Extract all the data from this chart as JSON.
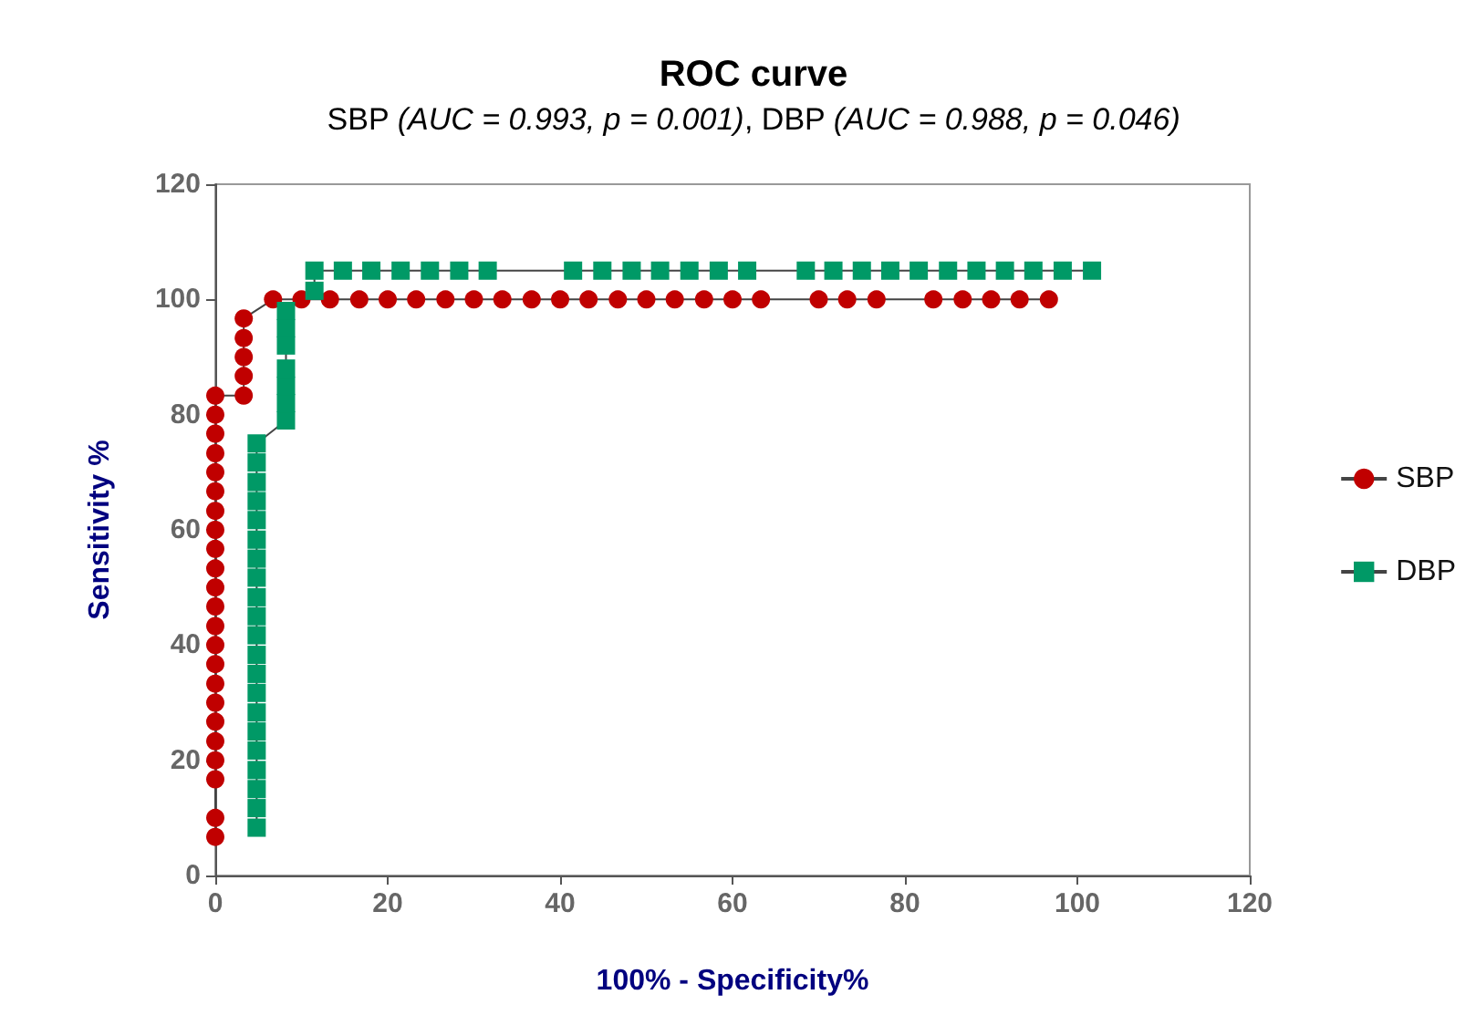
{
  "chart_data": {
    "type": "line",
    "title": "ROC curve",
    "subtitle": "SBP (AUC = 0.993, p = 0.001), DBP (AUC = 0.988, p = 0.046)",
    "xlabel": "100% - Specificity%",
    "ylabel": "Sensitivity %",
    "xlim": [
      0,
      120
    ],
    "ylim": [
      0,
      120
    ],
    "xticks": [
      0,
      20,
      40,
      60,
      80,
      100,
      120
    ],
    "yticks": [
      0,
      20,
      40,
      60,
      80,
      100,
      120
    ],
    "grid": false,
    "legend": "right",
    "line_style": "solid",
    "series": [
      {
        "name": "SBP",
        "color": "#c00000",
        "marker": "circle",
        "x": [
          0,
          0,
          0,
          0,
          0,
          0,
          0,
          0,
          0,
          0,
          0,
          0,
          0,
          0,
          0,
          0,
          0,
          0,
          0,
          0,
          0,
          0,
          0,
          3.3,
          3.3,
          3.3,
          3.3,
          3.3,
          6.7,
          10,
          13.3,
          16.7,
          20,
          23.3,
          26.7,
          30,
          33.3,
          36.7,
          40,
          43.3,
          46.7,
          50,
          53.3,
          56.7,
          60,
          63.3,
          70,
          73.3,
          76.7,
          83.3,
          86.7,
          90,
          93.3,
          96.7
        ],
        "values": [
          6.7,
          10,
          16.7,
          20,
          23.3,
          26.7,
          30,
          33.3,
          36.7,
          40,
          43.3,
          46.7,
          50,
          53.3,
          56.7,
          60,
          63.3,
          66.7,
          70,
          73.3,
          76.7,
          80,
          83.3,
          83.3,
          86.7,
          90,
          93.3,
          96.7,
          100,
          100,
          100,
          100,
          100,
          100,
          100,
          100,
          100,
          100,
          100,
          100,
          100,
          100,
          100,
          100,
          100,
          100,
          100,
          100,
          100,
          100,
          100,
          100,
          100,
          100
        ]
      },
      {
        "name": "DBP",
        "color": "#009966",
        "marker": "square",
        "x": [
          4.8,
          4.8,
          4.8,
          4.8,
          4.8,
          4.8,
          4.8,
          4.8,
          4.8,
          4.8,
          4.8,
          4.8,
          4.8,
          4.8,
          4.8,
          4.8,
          4.8,
          4.8,
          4.8,
          4.8,
          4.8,
          8.2,
          8.2,
          8.2,
          8.2,
          8.2,
          8.2,
          8.2,
          11.5,
          11.5,
          14.8,
          18.1,
          21.5,
          24.9,
          28.3,
          31.6,
          41.5,
          44.9,
          48.3,
          51.6,
          55,
          58.4,
          61.7,
          68.5,
          71.7,
          75,
          78.3,
          81.6,
          85,
          88.3,
          91.6,
          94.9,
          98.3,
          101.7
        ],
        "values": [
          8.3,
          11.7,
          15,
          18.3,
          21.7,
          25,
          28.3,
          31.7,
          35,
          38.3,
          41.7,
          45,
          48.3,
          51.7,
          55,
          58.3,
          61.7,
          65,
          68.3,
          71.7,
          75,
          79,
          82,
          85,
          88,
          92,
          95,
          98,
          101.5,
          105,
          105,
          105,
          105,
          105,
          105,
          105,
          105,
          105,
          105,
          105,
          105,
          105,
          105,
          105,
          105,
          105,
          105,
          105,
          105,
          105,
          105,
          105,
          105,
          105
        ]
      }
    ]
  }
}
